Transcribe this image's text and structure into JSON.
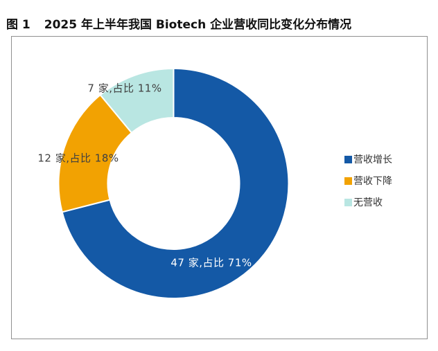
{
  "figure": {
    "label": "图 1",
    "title": "2025 年上半年我国 Biotech 企业营收同比变化分布情况"
  },
  "chart_data": {
    "type": "pie",
    "subtype": "donut",
    "title": "2025 年上半年我国 Biotech 企业营收同比变化分布情况",
    "unit": "家",
    "start_angle_deg": 0,
    "direction": "clockwise",
    "donut_hole_ratio": 0.57,
    "legend_position": "right",
    "slices": [
      {
        "name": "营收增长",
        "count": 47,
        "percent": 71,
        "color": "#1459A6",
        "label": "47 家,占比 71%",
        "label_color": "#FFFFFF"
      },
      {
        "name": "营收下降",
        "count": 12,
        "percent": 18,
        "color": "#F2A202",
        "label": "12 家,占比 18%",
        "label_color": "#404040"
      },
      {
        "name": "无营收",
        "count": 7,
        "percent": 11,
        "color": "#B9E6E2",
        "label": "7 家,占比 11%",
        "label_color": "#404040"
      }
    ]
  }
}
